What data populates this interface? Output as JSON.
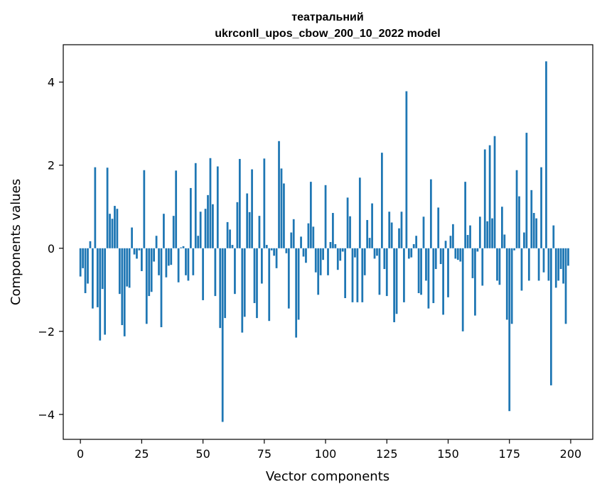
{
  "chart_data": {
    "type": "bar",
    "title": "театральний",
    "subtitle": "ukrconll_upos_cbow_200_10_2022 model",
    "xlabel": "Vector components",
    "ylabel": "Components values",
    "xlim": [
      -7,
      209
    ],
    "ylim": [
      -4.6,
      4.9
    ],
    "xticks": [
      0,
      25,
      50,
      75,
      100,
      125,
      150,
      175,
      200
    ],
    "yticks": [
      -4,
      -2,
      0,
      2,
      4
    ],
    "ytick_labels": [
      "−4",
      "−2",
      "0",
      "2",
      "4"
    ],
    "grid": false,
    "bar_color": "#1f77b4",
    "values": [
      -0.68,
      -0.48,
      -1.08,
      -0.85,
      0.17,
      -1.45,
      1.95,
      -1.42,
      -2.22,
      -0.98,
      -2.08,
      1.94,
      0.83,
      0.71,
      1.02,
      0.95,
      -1.1,
      -1.85,
      -2.12,
      -0.92,
      -0.95,
      0.5,
      -0.15,
      -0.25,
      -0.05,
      -0.55,
      1.88,
      -1.82,
      -1.15,
      -1.05,
      -0.32,
      0.3,
      -0.65,
      -1.9,
      0.83,
      -0.7,
      -0.42,
      -0.4,
      0.78,
      1.87,
      -0.82,
      0.02,
      0.05,
      -0.65,
      -0.78,
      1.45,
      -0.65,
      2.05,
      0.3,
      0.88,
      -1.25,
      0.95,
      1.28,
      2.17,
      1.06,
      -1.15,
      1.97,
      -1.92,
      -4.18,
      -1.68,
      0.63,
      0.45,
      0.08,
      -1.1,
      1.11,
      2.15,
      -2.03,
      -1.65,
      1.32,
      0.87,
      1.9,
      -1.32,
      -1.68,
      0.78,
      -0.85,
      2.16,
      0.08,
      -1.75,
      -0.05,
      -0.18,
      -0.48,
      2.58,
      1.92,
      1.56,
      -0.12,
      -1.45,
      0.38,
      0.7,
      -2.15,
      -1.72,
      0.28,
      -0.2,
      -0.35,
      0.6,
      1.6,
      0.52,
      -0.58,
      -1.12,
      -0.65,
      -0.28,
      1.52,
      -0.65,
      0.15,
      0.85,
      0.1,
      -0.52,
      -0.3,
      -0.08,
      -1.2,
      1.22,
      0.77,
      -1.3,
      -0.22,
      -1.3,
      1.7,
      -1.3,
      -0.65,
      0.68,
      0.25,
      1.08,
      -0.25,
      -0.18,
      -1.12,
      2.3,
      -0.5,
      -1.15,
      0.88,
      0.62,
      -1.78,
      -1.58,
      0.48,
      0.88,
      -1.3,
      3.78,
      -0.25,
      -0.22,
      0.1,
      0.3,
      -1.08,
      -1.12,
      0.76,
      -0.78,
      -1.45,
      1.66,
      -1.32,
      -0.5,
      0.98,
      -0.38,
      -1.6,
      0.18,
      -1.18,
      0.3,
      0.58,
      -0.25,
      -0.28,
      -0.32,
      -2.0,
      1.6,
      0.32,
      0.55,
      -0.72,
      -1.62,
      -0.08,
      0.76,
      -0.9,
      2.38,
      0.65,
      2.48,
      0.72,
      2.7,
      -0.78,
      -0.88,
      1.0,
      0.33,
      -1.72,
      -3.92,
      -1.82,
      -0.05,
      1.88,
      1.25,
      -1.02,
      0.38,
      2.78,
      -0.78,
      1.4,
      0.85,
      0.72,
      -0.78,
      1.95,
      -0.58,
      4.5,
      -0.78,
      -3.3,
      0.55,
      -0.95,
      -0.78,
      -0.5,
      -0.85,
      -1.82,
      -0.42
    ]
  }
}
